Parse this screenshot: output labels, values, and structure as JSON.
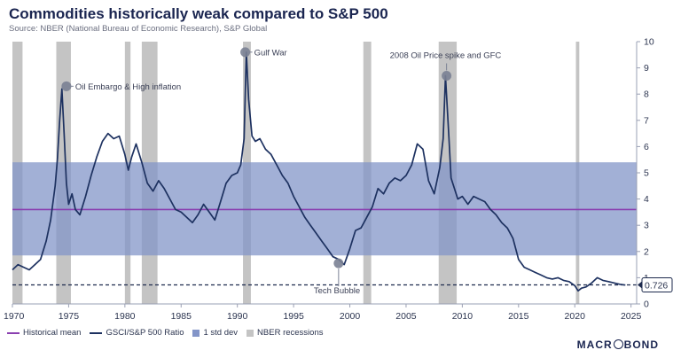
{
  "header": {
    "title": "Commodities historically weak compared to S&P 500",
    "subtitle": "Source: NBER (National Bureau of Economic Research), S&P Global"
  },
  "legend": {
    "mean": "Historical mean",
    "ratio": "GSCI/S&P 500 Ratio",
    "std": "1 std dev",
    "recession": "NBER recessions"
  },
  "brand": {
    "pre": "MACR",
    "post": "BOND"
  },
  "colors": {
    "line": "#1d3160",
    "mean": "#8a3fb0",
    "band": "#8395c8",
    "recession": "#c4c4c4"
  },
  "chart_data": {
    "type": "line",
    "title": "Commodities historically weak compared to S&P 500",
    "xlim": [
      1970,
      2025.5
    ],
    "ylim": [
      0,
      10
    ],
    "x_ticks": [
      1970,
      1975,
      1980,
      1985,
      1990,
      1995,
      2000,
      2005,
      2010,
      2015,
      2020,
      2025
    ],
    "y_ticks": [
      0,
      1,
      2,
      3,
      4,
      5,
      6,
      7,
      8,
      9,
      10
    ],
    "historical_mean": 3.6,
    "std_band": [
      1.85,
      5.4
    ],
    "last_value_label": "0.726",
    "last_value": 0.726,
    "recessions": [
      [
        1970.0,
        1970.9
      ],
      [
        1973.9,
        1975.2
      ],
      [
        1980.0,
        1980.5
      ],
      [
        1981.5,
        1982.9
      ],
      [
        1990.5,
        1991.2
      ],
      [
        2001.2,
        2001.9
      ],
      [
        2007.9,
        2009.5
      ],
      [
        2020.1,
        2020.4
      ]
    ],
    "series": [
      {
        "name": "GSCI/S&P 500 Ratio",
        "x": [
          1970.0,
          1970.5,
          1971.0,
          1971.5,
          1972.0,
          1972.5,
          1973.0,
          1973.4,
          1973.8,
          1974.0,
          1974.2,
          1974.4,
          1974.6,
          1974.8,
          1975.0,
          1975.3,
          1975.6,
          1976.0,
          1976.5,
          1977.0,
          1977.5,
          1978.0,
          1978.5,
          1979.0,
          1979.5,
          1980.0,
          1980.3,
          1980.6,
          1981.0,
          1981.5,
          1982.0,
          1982.5,
          1983.0,
          1983.5,
          1984.0,
          1984.5,
          1985.0,
          1985.5,
          1986.0,
          1986.5,
          1987.0,
          1987.5,
          1988.0,
          1988.5,
          1989.0,
          1989.5,
          1990.0,
          1990.3,
          1990.6,
          1990.8,
          1991.0,
          1991.3,
          1991.6,
          1992.0,
          1992.5,
          1993.0,
          1993.5,
          1994.0,
          1994.5,
          1995.0,
          1995.5,
          1996.0,
          1996.5,
          1997.0,
          1997.5,
          1998.0,
          1998.5,
          1999.0,
          1999.5,
          2000.0,
          2000.5,
          2001.0,
          2001.5,
          2002.0,
          2002.5,
          2003.0,
          2003.5,
          2004.0,
          2004.5,
          2005.0,
          2005.5,
          2006.0,
          2006.5,
          2007.0,
          2007.5,
          2008.0,
          2008.3,
          2008.5,
          2008.8,
          2009.0,
          2009.3,
          2009.6,
          2010.0,
          2010.5,
          2011.0,
          2011.5,
          2012.0,
          2012.5,
          2013.0,
          2013.5,
          2014.0,
          2014.5,
          2015.0,
          2015.5,
          2016.0,
          2016.5,
          2017.0,
          2017.5,
          2018.0,
          2018.5,
          2019.0,
          2019.5,
          2020.0,
          2020.3,
          2020.6,
          2021.0,
          2021.5,
          2022.0,
          2022.5,
          2023.0,
          2023.5,
          2024.0,
          2024.5
        ],
        "values": [
          1.3,
          1.5,
          1.4,
          1.3,
          1.5,
          1.7,
          2.4,
          3.2,
          4.5,
          5.5,
          7.0,
          8.2,
          6.5,
          4.6,
          3.8,
          4.2,
          3.6,
          3.4,
          4.1,
          4.9,
          5.6,
          6.2,
          6.5,
          6.3,
          6.4,
          5.7,
          5.1,
          5.6,
          6.1,
          5.4,
          4.6,
          4.3,
          4.7,
          4.4,
          4.0,
          3.6,
          3.5,
          3.3,
          3.1,
          3.4,
          3.8,
          3.5,
          3.2,
          3.9,
          4.6,
          4.9,
          5.0,
          5.3,
          6.3,
          9.6,
          7.8,
          6.4,
          6.2,
          6.3,
          5.9,
          5.7,
          5.3,
          4.9,
          4.6,
          4.1,
          3.7,
          3.3,
          3.0,
          2.7,
          2.4,
          2.1,
          1.8,
          1.7,
          1.5,
          2.1,
          2.8,
          2.9,
          3.3,
          3.7,
          4.4,
          4.2,
          4.6,
          4.8,
          4.7,
          4.9,
          5.3,
          6.1,
          5.9,
          4.7,
          4.2,
          5.2,
          6.3,
          8.7,
          6.4,
          4.8,
          4.4,
          4.0,
          4.1,
          3.8,
          4.1,
          4.0,
          3.9,
          3.6,
          3.4,
          3.1,
          2.9,
          2.5,
          1.7,
          1.4,
          1.3,
          1.2,
          1.1,
          1.0,
          0.95,
          1.0,
          0.9,
          0.85,
          0.7,
          0.5,
          0.6,
          0.65,
          0.8,
          1.0,
          0.9,
          0.85,
          0.8,
          0.75,
          0.72
        ]
      }
    ],
    "annotations": [
      {
        "text": "Oil Embargo & High inflation",
        "x": 1974.8,
        "y": 8.3
      },
      {
        "text": "Gulf War",
        "x": 1990.7,
        "y": 9.6
      },
      {
        "text": "2008 Oil Price spike and GFC",
        "x": 2008.6,
        "y": 8.7
      },
      {
        "text": "Tech Bubble",
        "x": 1999.0,
        "y": 1.55
      }
    ]
  }
}
